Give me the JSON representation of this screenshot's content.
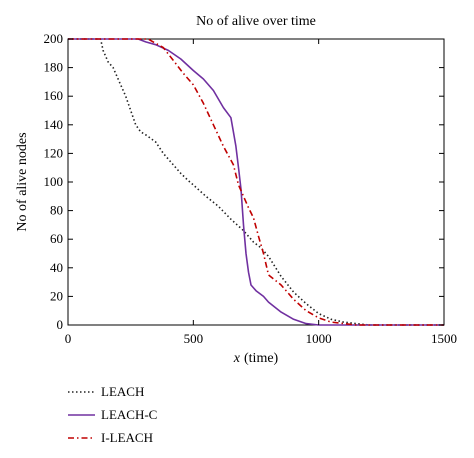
{
  "chart_data": {
    "type": "line",
    "title": "No of alive over time",
    "xlabel_var": "x",
    "xlabel_unit": "(time)",
    "ylabel": "No of alive nodes",
    "xlim": [
      0,
      1500
    ],
    "ylim": [
      0,
      200
    ],
    "xticks": [
      0,
      500,
      1000,
      1500
    ],
    "yticks": [
      0,
      20,
      40,
      60,
      80,
      100,
      120,
      140,
      160,
      180,
      200
    ],
    "grid": false,
    "legend_position": "below-left",
    "series": [
      {
        "name": "LEACH",
        "color": "#222222",
        "dash": "dotted",
        "x": [
          0,
          130,
          140,
          160,
          180,
          200,
          230,
          250,
          270,
          290,
          310,
          350,
          380,
          420,
          450,
          480,
          500,
          550,
          600,
          650,
          700,
          740,
          770,
          800,
          850,
          900,
          950,
          1000,
          1050,
          1100,
          1150,
          1200,
          1300,
          1500
        ],
        "y": [
          200,
          200,
          192,
          184,
          180,
          172,
          160,
          150,
          140,
          135,
          133,
          128,
          120,
          112,
          106,
          101,
          98,
          90,
          83,
          74,
          66,
          58,
          54,
          48,
          34,
          23,
          15,
          8,
          4,
          2,
          1,
          0,
          0,
          0
        ]
      },
      {
        "name": "LEACH-C",
        "color": "#7030a0",
        "dash": "solid",
        "x": [
          0,
          280,
          310,
          350,
          400,
          450,
          500,
          540,
          580,
          620,
          650,
          660,
          670,
          680,
          690,
          700,
          710,
          720,
          730,
          750,
          780,
          800,
          850,
          900,
          950,
          1000,
          1100,
          1500
        ],
        "y": [
          200,
          200,
          198,
          196,
          192,
          186,
          178,
          172,
          164,
          152,
          145,
          135,
          125,
          110,
          95,
          70,
          50,
          37,
          28,
          24,
          20,
          16,
          9,
          4,
          1,
          0,
          0,
          0
        ]
      },
      {
        "name": "I-LEACH",
        "color": "#c00000",
        "dash": "dashdot",
        "x": [
          0,
          320,
          340,
          380,
          420,
          460,
          500,
          540,
          580,
          620,
          660,
          680,
          700,
          720,
          740,
          760,
          780,
          800,
          850,
          900,
          950,
          1000,
          1050,
          1100,
          1150,
          1200,
          1300,
          1500
        ],
        "y": [
          200,
          200,
          198,
          194,
          185,
          176,
          168,
          155,
          140,
          125,
          112,
          98,
          90,
          82,
          75,
          62,
          50,
          35,
          28,
          18,
          10,
          5,
          2,
          1,
          0,
          0,
          0,
          0
        ]
      }
    ]
  }
}
